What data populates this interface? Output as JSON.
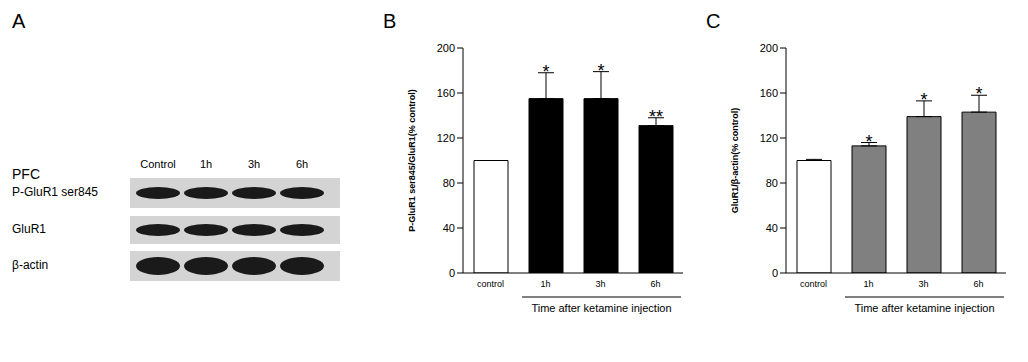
{
  "blot": {
    "figure_label": "A",
    "region": "PFC",
    "lanes": [
      "Control",
      "1h",
      "3h",
      "6h"
    ],
    "rows": [
      "P-GluR1 ser845",
      "GluR1",
      "β-actin"
    ]
  },
  "chart_data": [
    {
      "type": "bar",
      "title": "B",
      "categories": [
        "control",
        "1h",
        "3h",
        "6h"
      ],
      "values": [
        100,
        155,
        155,
        131
      ],
      "errors": [
        0,
        23,
        24,
        7
      ],
      "annotations": [
        null,
        "*",
        "*",
        "**"
      ],
      "colors": [
        "#ffffff",
        "#000000",
        "#000000",
        "#000000"
      ],
      "y_label": "P-GluR1 ser845/GluR1(% control)",
      "x_label": "Time after ketamine injection",
      "ylim": [
        0,
        200
      ],
      "yticks": [
        0,
        40,
        80,
        120,
        160,
        200
      ],
      "grid": false
    },
    {
      "type": "bar",
      "title": "C",
      "categories": [
        "control",
        "1h",
        "3h",
        "6h"
      ],
      "values": [
        100,
        113,
        139,
        143
      ],
      "errors": [
        1,
        3,
        14,
        15
      ],
      "annotations": [
        null,
        "*",
        "*",
        "*"
      ],
      "colors": [
        "#ffffff",
        "#808080",
        "#808080",
        "#808080"
      ],
      "y_label": "GluR1/β-actin(% control)",
      "x_label": "Time after ketamine injection",
      "ylim": [
        0,
        200
      ],
      "yticks": [
        0,
        40,
        80,
        120,
        160,
        200
      ],
      "grid": false
    }
  ]
}
